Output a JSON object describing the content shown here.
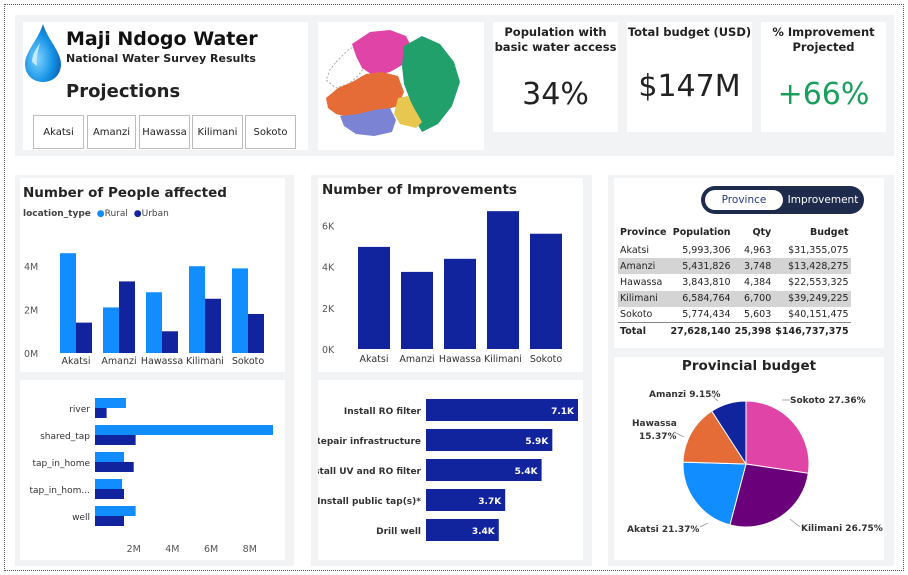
{
  "header": {
    "title": "Maji Ndogo Water",
    "subtitle": "National Water Survey Results",
    "section": "Projections",
    "slicers": [
      "Akatsi",
      "Amanzi",
      "Hawassa",
      "Kilimani",
      "Sokoto"
    ]
  },
  "map": {
    "colors": {
      "north": "#e044a7",
      "east": "#22a06b",
      "west": "#e66c37",
      "south": "#7b83d4",
      "centre": "#e8c750"
    }
  },
  "kpis": [
    {
      "title": "Population with basic water access",
      "value": "34%",
      "color": "#222222"
    },
    {
      "title": "Total budget (USD)",
      "value": "$147M",
      "color": "#222222"
    },
    {
      "title": "% Improvement Projected",
      "value": "+66%",
      "color": "#1a9e5c"
    }
  ],
  "colors": {
    "rural": "#118dff",
    "urban": "#12239e",
    "navy": "#12239e"
  },
  "people_chart": {
    "title": "Number of People affected",
    "legend_title": "location_type",
    "legend": [
      "Rural",
      "Urban"
    ],
    "yticks": [
      "0M",
      "2M",
      "4M"
    ]
  },
  "improvements_chart": {
    "title": "Number of Improvements",
    "yticks": [
      "0K",
      "2K",
      "4K",
      "6K"
    ]
  },
  "source_chart": {
    "xticks": [
      "2M",
      "4M",
      "6M",
      "8M"
    ]
  },
  "province_table": {
    "toggle": {
      "active": "Province",
      "inactive": "Improvement"
    },
    "headers": [
      "Province",
      "Population",
      "Qty",
      "Budget"
    ],
    "rows": [
      [
        "Akatsi",
        "5,993,306",
        "4,963",
        "$31,355,075"
      ],
      [
        "Amanzi",
        "5,431,826",
        "3,748",
        "$13,428,275"
      ],
      [
        "Hawassa",
        "3,843,810",
        "4,384",
        "$22,553,325"
      ],
      [
        "Kilimani",
        "6,584,764",
        "6,700",
        "$39,249,225"
      ],
      [
        "Sokoto",
        "5,774,434",
        "5,603",
        "$40,151,475"
      ]
    ],
    "total": [
      "Total",
      "27,628,140",
      "25,398",
      "$146,737,375"
    ]
  },
  "budget_chart": {
    "title": "Provincial budget"
  },
  "chart_data": [
    {
      "type": "bar",
      "title": "Number of People affected",
      "categories": [
        "Akatsi",
        "Amanzi",
        "Hawassa",
        "Kilimani",
        "Sokoto"
      ],
      "series": [
        {
          "name": "Rural",
          "values": [
            4.6,
            2.1,
            2.8,
            4.0,
            3.9
          ]
        },
        {
          "name": "Urban",
          "values": [
            1.4,
            3.3,
            1.0,
            2.5,
            1.8
          ]
        }
      ],
      "ylabel": "",
      "ylim": [
        0,
        5.9
      ]
    },
    {
      "type": "bar",
      "title": "Number of Improvements",
      "categories": [
        "Akatsi",
        "Amanzi",
        "Hawassa",
        "Kilimani",
        "Sokoto"
      ],
      "values": [
        4963,
        3748,
        4384,
        6700,
        5603
      ],
      "ylim": [
        0,
        7000
      ]
    },
    {
      "type": "bar",
      "orientation": "horizontal",
      "categories": [
        "river",
        "shared_tap",
        "tap_in_home",
        "tap_in_hom...",
        "well"
      ],
      "series": [
        {
          "name": "Rural",
          "values": [
            1.6,
            9.2,
            1.5,
            1.4,
            2.1
          ]
        },
        {
          "name": "Urban",
          "values": [
            0.6,
            2.1,
            2.0,
            1.5,
            1.5
          ]
        }
      ],
      "xlim": [
        0,
        9.2
      ]
    },
    {
      "type": "bar",
      "orientation": "horizontal",
      "categories": [
        "Install RO filter",
        "Repair infrastructure",
        "Install UV and RO filter",
        "Install public tap(s)*",
        "Drill well"
      ],
      "values": [
        7.1,
        5.9,
        5.4,
        3.7,
        3.4
      ],
      "labels": [
        "7.1K",
        "5.9K",
        "5.4K",
        "3.7K",
        "3.4K"
      ],
      "xlim": [
        0,
        7.1
      ]
    },
    {
      "type": "pie",
      "title": "Provincial budget",
      "categories": [
        "Sokoto",
        "Kilimani",
        "Akatsi",
        "Hawassa",
        "Amanzi"
      ],
      "values": [
        27.36,
        26.75,
        21.37,
        15.37,
        9.15
      ],
      "labels": [
        "Sokoto 27.36%",
        "Kilimani 26.75%",
        "Akatsi 21.37%",
        "Hawassa 15.37%",
        "Amanzi 9.15%"
      ],
      "colors": [
        "#e044a7",
        "#6b007b",
        "#118dff",
        "#e66c37",
        "#12239e"
      ]
    }
  ]
}
